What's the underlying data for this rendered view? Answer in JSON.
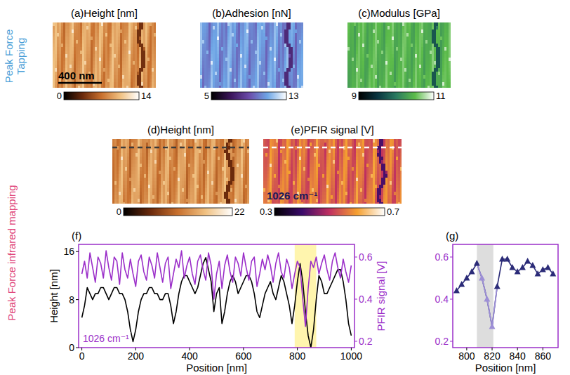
{
  "row_labels": [
    "Peak Force Tapping",
    "Peak Force infrared mapping"
  ],
  "chart_data": [
    {
      "type": "image",
      "title": "(a)Height [nm]",
      "colors": [
        "#000000",
        "#6b2a0c",
        "#c8702e",
        "#f0c080",
        "#ffffff"
      ],
      "colorbar_range": [
        0,
        14
      ],
      "colorbar_ticks": [
        0,
        14
      ],
      "annotations": [
        "400 nm"
      ]
    },
    {
      "type": "image",
      "title": "(b)Adhesion [nN]",
      "colors": [
        "#000000",
        "#3a1458",
        "#6a4aa8",
        "#6ea6e6",
        "#ffffff"
      ],
      "colorbar_range": [
        5,
        13
      ],
      "colorbar_ticks": [
        5,
        13
      ]
    },
    {
      "type": "image",
      "title": "(c)Modulus [GPa]",
      "colors": [
        "#000000",
        "#0a3440",
        "#2a7a60",
        "#5cbc4a",
        "#ffffff"
      ],
      "colorbar_range": [
        9,
        11
      ],
      "colorbar_ticks": [
        9,
        11
      ]
    },
    {
      "type": "image",
      "title": "(d)Height [nm]",
      "colors": [
        "#000000",
        "#6b2a0c",
        "#c8702e",
        "#f0c080",
        "#ffffff"
      ],
      "colorbar_range": [
        0,
        22
      ],
      "colorbar_ticks": [
        0,
        22
      ]
    },
    {
      "type": "image",
      "title": "(e)PFIR signal [V]",
      "colors": [
        "#000000",
        "#3a0a6a",
        "#c03060",
        "#f5a030",
        "#ffffff"
      ],
      "colorbar_range": [
        0.3,
        0.7
      ],
      "colorbar_ticks": [
        0.3,
        0.7
      ],
      "annotations": [
        "1026 cm⁻¹"
      ]
    },
    {
      "type": "line",
      "title": "(f)",
      "xlabel": "Position [nm]",
      "ylabel": "Height [nm]",
      "y2label": "PFIR signal [V]",
      "x": [
        0,
        10,
        20,
        30,
        40,
        50,
        60,
        70,
        80,
        90,
        100,
        110,
        120,
        130,
        140,
        150,
        160,
        170,
        180,
        190,
        200,
        210,
        220,
        230,
        240,
        250,
        260,
        270,
        280,
        290,
        300,
        310,
        320,
        330,
        340,
        350,
        360,
        370,
        380,
        390,
        400,
        410,
        420,
        430,
        440,
        450,
        460,
        470,
        480,
        490,
        500,
        510,
        520,
        530,
        540,
        550,
        560,
        570,
        580,
        590,
        600,
        610,
        620,
        630,
        640,
        650,
        660,
        670,
        680,
        690,
        700,
        710,
        720,
        730,
        740,
        750,
        760,
        770,
        780,
        790,
        800,
        810,
        820,
        830,
        840,
        850,
        860,
        870,
        880,
        890,
        900,
        910,
        920,
        930,
        940,
        950,
        960,
        970,
        980,
        990,
        1000
      ],
      "xlim": [
        -12,
        1012
      ],
      "xticks": [
        0,
        200,
        400,
        600,
        800,
        1000
      ],
      "ylim": [
        0,
        17.2
      ],
      "yticks": [
        0,
        8,
        16
      ],
      "y2lim": [
        0.17,
        0.66
      ],
      "y2ticks": [
        0.2,
        0.4,
        0.6
      ],
      "highlight_range": [
        790,
        870
      ],
      "annotations": [
        "1026 cm⁻¹"
      ],
      "series": [
        {
          "color": "#000000",
          "values": [
            5,
            7,
            10,
            9,
            8,
            9,
            9,
            10,
            10,
            9,
            8,
            9,
            10,
            10,
            9,
            9,
            8,
            6,
            3,
            1,
            3,
            6,
            8,
            9,
            9,
            10,
            10,
            9,
            9,
            8,
            8,
            9,
            9,
            7,
            4,
            6,
            9,
            11,
            12,
            12,
            11,
            10,
            9,
            10,
            12,
            14,
            15,
            13,
            11,
            6,
            9,
            10,
            4,
            6,
            9,
            11,
            12,
            11,
            9,
            10,
            11,
            12,
            12,
            11,
            9,
            6,
            5,
            7,
            9,
            10,
            11,
            9,
            8,
            10,
            12,
            11,
            9,
            7,
            4,
            7,
            11,
            14,
            11,
            6,
            2,
            0,
            3,
            8,
            12,
            11,
            9,
            9,
            10,
            11,
            12,
            13,
            13,
            11,
            8,
            4,
            2
          ]
        },
        {
          "color": "#9b2fc9",
          "axis": "y2",
          "values": [
            0.52,
            0.58,
            0.5,
            0.62,
            0.55,
            0.48,
            0.6,
            0.57,
            0.5,
            0.63,
            0.55,
            0.49,
            0.6,
            0.58,
            0.47,
            0.62,
            0.54,
            0.5,
            0.59,
            0.52,
            0.46,
            0.58,
            0.61,
            0.53,
            0.49,
            0.6,
            0.56,
            0.5,
            0.62,
            0.55,
            0.48,
            0.57,
            0.6,
            0.45,
            0.52,
            0.59,
            0.55,
            0.63,
            0.5,
            0.56,
            0.6,
            0.52,
            0.47,
            0.58,
            0.61,
            0.54,
            0.49,
            0.62,
            0.56,
            0.4,
            0.52,
            0.58,
            0.45,
            0.56,
            0.61,
            0.53,
            0.48,
            0.6,
            0.57,
            0.51,
            0.62,
            0.55,
            0.49,
            0.58,
            0.6,
            0.46,
            0.52,
            0.59,
            0.54,
            0.61,
            0.56,
            0.48,
            0.57,
            0.62,
            0.53,
            0.5,
            0.59,
            0.55,
            0.45,
            0.52,
            0.58,
            0.55,
            0.4,
            0.27,
            0.45,
            0.58,
            0.55,
            0.6,
            0.52,
            0.57,
            0.61,
            0.54,
            0.49,
            0.58,
            0.62,
            0.55,
            0.5,
            0.59,
            0.53,
            0.48,
            0.56
          ]
        }
      ]
    },
    {
      "type": "line",
      "title": "(g)",
      "xlabel": "Position [nm]",
      "x": [
        792,
        796,
        800,
        804,
        808,
        812,
        816,
        820,
        824,
        828,
        832,
        836,
        840,
        844,
        848,
        852,
        856,
        860,
        864,
        868
      ],
      "xlim": [
        789,
        872
      ],
      "xticks": [
        800,
        820,
        840,
        860
      ],
      "ylim": [
        0.17,
        0.66
      ],
      "yticks": [
        0.2,
        0.4,
        0.6
      ],
      "highlight_range": [
        808,
        821
      ],
      "series": [
        {
          "color": "#2b2b78",
          "marker": "triangle",
          "values": [
            0.44,
            0.47,
            0.5,
            0.53,
            0.57,
            0.5,
            0.4,
            0.27,
            0.46,
            0.59,
            0.59,
            0.55,
            0.53,
            0.55,
            0.58,
            0.56,
            0.52,
            0.54,
            0.55,
            0.52
          ],
          "colors": [
            "#2b2b78",
            "#2b2b78",
            "#2b2b78",
            "#2b2b78",
            "#2b2b78",
            "#9d8fd6",
            "#9d8fd6",
            "#9d8fd6",
            "#2b2b78",
            "#2b2b78",
            "#2b2b78",
            "#2b2b78",
            "#2b2b78",
            "#2b2b78",
            "#2b2b78",
            "#2b2b78",
            "#2b2b78",
            "#2b2b78",
            "#2b2b78",
            "#2b2b78"
          ]
        }
      ]
    }
  ]
}
